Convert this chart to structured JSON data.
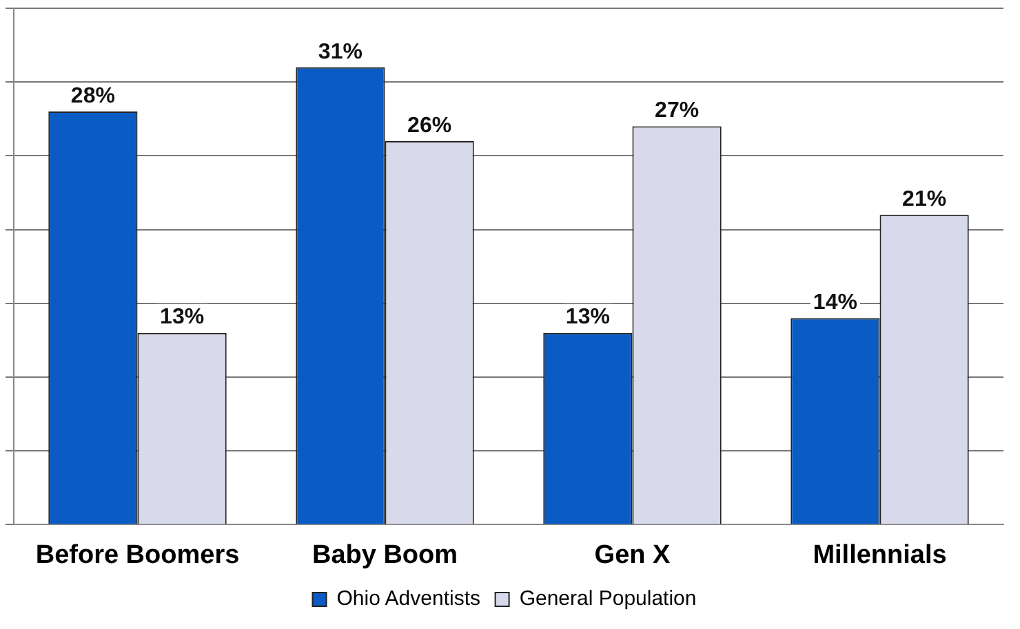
{
  "chart_data": {
    "type": "bar",
    "categories": [
      "Before Boomers",
      "Baby Boom",
      "Gen X",
      "Millennials"
    ],
    "series": [
      {
        "name": "Ohio Adventists",
        "color": "#0a5cc4",
        "values": [
          28,
          31,
          13,
          14
        ],
        "value_labels": [
          "28%",
          "31%",
          "13%",
          "14%"
        ]
      },
      {
        "name": "General Population",
        "color": "#d9d9ec",
        "values": [
          13,
          26,
          27,
          21
        ],
        "value_labels": [
          "13%",
          "26%",
          "27%",
          "21%"
        ]
      }
    ],
    "tick_labels": "x",
    "grid": "y",
    "legend": "bottom"
  }
}
